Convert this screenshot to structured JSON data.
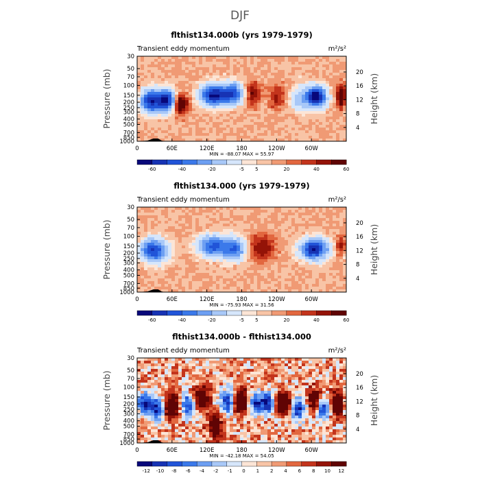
{
  "figure": {
    "title": "DJF"
  },
  "colors": {
    "abs_scale": [
      "#08087a",
      "#1733b4",
      "#2154d8",
      "#3b79ea",
      "#6d9ff2",
      "#a8c8f8",
      "#d6e6fb",
      "#fce5d6",
      "#f8c4a6",
      "#f09a74",
      "#e2673f",
      "#c3341c",
      "#941307",
      "#600404"
    ],
    "diff_scale": [
      "#08087a",
      "#1733b4",
      "#2154d8",
      "#3b79ea",
      "#6d9ff2",
      "#a8c8f8",
      "#d6e6fb",
      "#fce5d6",
      "#f8c4a6",
      "#f09a74",
      "#e2673f",
      "#c3341c",
      "#941307",
      "#600404"
    ]
  },
  "chart_data": [
    {
      "type": "heatmap",
      "title": "flthist134.000b (yrs 1979-1979)",
      "left_label": "Transient eddy momentum",
      "units": "m²/s²",
      "ylabel": "Pressure (mb)",
      "y2label": "Height (km)",
      "x_ticks": [
        "0",
        "60E",
        "120E",
        "180",
        "120W",
        "60W"
      ],
      "x_tick_lon": [
        0,
        60,
        120,
        180,
        240,
        300
      ],
      "y_ticks": [
        "30",
        "50",
        "70",
        "100",
        "150",
        "200",
        "250",
        "300",
        "400",
        "500",
        "700",
        "850",
        "1000"
      ],
      "y_tick_p": [
        30,
        50,
        70,
        100,
        150,
        200,
        250,
        300,
        400,
        500,
        700,
        850,
        1000
      ],
      "y2_ticks": [
        "20",
        "16",
        "12",
        "8",
        "4"
      ],
      "y2_tick_km": [
        20,
        16,
        12,
        8,
        4
      ],
      "stats": "MIN = -88.07   MAX =  55.97",
      "colorbar_labels": [
        "-60",
        "-40",
        "-20",
        "-5",
        "5",
        "20",
        "40",
        "60"
      ],
      "colorbar_levels": [
        -70,
        -60,
        -50,
        -40,
        -30,
        -20,
        -10,
        -5,
        0,
        5,
        10,
        20,
        30,
        40,
        50,
        60
      ],
      "features": [
        {
          "lon": 25,
          "p": 190,
          "amp": -70,
          "slon": 14,
          "sp": 0.32
        },
        {
          "lon": 52,
          "p": 185,
          "amp": -62,
          "slon": 10,
          "sp": 0.3
        },
        {
          "lon": 75,
          "p": 215,
          "amp": 48,
          "slon": 8,
          "sp": 0.28
        },
        {
          "lon": 132,
          "p": 150,
          "amp": -72,
          "slon": 16,
          "sp": 0.3
        },
        {
          "lon": 165,
          "p": 140,
          "amp": -55,
          "slon": 12,
          "sp": 0.3
        },
        {
          "lon": 200,
          "p": 140,
          "amp": 30,
          "slon": 8,
          "sp": 0.3
        },
        {
          "lon": 240,
          "p": 160,
          "amp": 22,
          "slon": 9,
          "sp": 0.32
        },
        {
          "lon": 280,
          "p": 170,
          "amp": -25,
          "slon": 10,
          "sp": 0.35
        },
        {
          "lon": 308,
          "p": 160,
          "amp": -80,
          "slon": 12,
          "sp": 0.3
        },
        {
          "lon": 352,
          "p": 160,
          "amp": 50,
          "slon": 6,
          "sp": 0.3
        }
      ]
    },
    {
      "type": "heatmap",
      "title": "flthist134.000 (yrs 1979-1979)",
      "left_label": "Transient eddy momentum",
      "units": "m²/s²",
      "ylabel": "Pressure (mb)",
      "y2label": "Height (km)",
      "x_ticks": [
        "0",
        "60E",
        "120E",
        "180",
        "120W",
        "60W"
      ],
      "x_tick_lon": [
        0,
        60,
        120,
        180,
        240,
        300
      ],
      "y_ticks": [
        "30",
        "50",
        "70",
        "100",
        "150",
        "200",
        "250",
        "300",
        "400",
        "500",
        "700",
        "850",
        "1000"
      ],
      "y_tick_p": [
        30,
        50,
        70,
        100,
        150,
        200,
        250,
        300,
        400,
        500,
        700,
        850,
        1000
      ],
      "y2_ticks": [
        "20",
        "16",
        "12",
        "8",
        "4"
      ],
      "y2_tick_km": [
        20,
        16,
        12,
        8,
        4
      ],
      "stats": "MIN = -75.93   MAX =  31.56",
      "colorbar_labels": [
        "-60",
        "-40",
        "-20",
        "-5",
        "5",
        "20",
        "40",
        "60"
      ],
      "colorbar_levels": [
        -70,
        -60,
        -50,
        -40,
        -30,
        -20,
        -10,
        -5,
        0,
        5,
        10,
        20,
        30,
        40,
        50,
        60
      ],
      "features": [
        {
          "lon": 28,
          "p": 180,
          "amp": -62,
          "slon": 16,
          "sp": 0.32
        },
        {
          "lon": 130,
          "p": 150,
          "amp": -55,
          "slon": 18,
          "sp": 0.3
        },
        {
          "lon": 168,
          "p": 170,
          "amp": -45,
          "slon": 14,
          "sp": 0.32
        },
        {
          "lon": 215,
          "p": 160,
          "amp": 30,
          "slon": 14,
          "sp": 0.32
        },
        {
          "lon": 305,
          "p": 170,
          "amp": -70,
          "slon": 16,
          "sp": 0.3
        },
        {
          "lon": 352,
          "p": 150,
          "amp": 25,
          "slon": 6,
          "sp": 0.3
        }
      ]
    },
    {
      "type": "heatmap",
      "title": "flthist134.000b - flthist134.000",
      "left_label": "Transient eddy momentum",
      "units": "m²/s²",
      "ylabel": "Pressure (mb)",
      "y2label": "Height (km)",
      "x_ticks": [
        "0",
        "60E",
        "120E",
        "180",
        "120W",
        "60W"
      ],
      "x_tick_lon": [
        0,
        60,
        120,
        180,
        240,
        300
      ],
      "y_ticks": [
        "30",
        "50",
        "70",
        "100",
        "150",
        "200",
        "250",
        "300",
        "400",
        "500",
        "700",
        "850",
        "1000"
      ],
      "y_tick_p": [
        30,
        50,
        70,
        100,
        150,
        200,
        250,
        300,
        400,
        500,
        700,
        850,
        1000
      ],
      "y2_ticks": [
        "20",
        "16",
        "12",
        "8",
        "4"
      ],
      "y2_tick_km": [
        20,
        16,
        12,
        8,
        4
      ],
      "stats": "MIN = -42.18   MAX =  54.05",
      "colorbar_labels": [
        "-12",
        "-10",
        "-8",
        "-6",
        "-4",
        "-2",
        "-1",
        "0",
        "1",
        "2",
        "4",
        "6",
        "8",
        "10",
        "12"
      ],
      "colorbar_levels": [
        -14,
        -12,
        -10,
        -8,
        -6,
        -4,
        -2,
        -1,
        0,
        1,
        2,
        4,
        6,
        8,
        10,
        12
      ],
      "features": [
        {
          "lon": 12,
          "p": 200,
          "amp": -14,
          "slon": 10,
          "sp": 0.3
        },
        {
          "lon": 35,
          "p": 250,
          "amp": -12,
          "slon": 9,
          "sp": 0.35
        },
        {
          "lon": 60,
          "p": 220,
          "amp": 16,
          "slon": 9,
          "sp": 0.35
        },
        {
          "lon": 88,
          "p": 210,
          "amp": -14,
          "slon": 9,
          "sp": 0.35
        },
        {
          "lon": 110,
          "p": 160,
          "amp": 12,
          "slon": 10,
          "sp": 0.35
        },
        {
          "lon": 135,
          "p": 500,
          "amp": 12,
          "slon": 8,
          "sp": 0.35
        },
        {
          "lon": 155,
          "p": 180,
          "amp": -13,
          "slon": 9,
          "sp": 0.35
        },
        {
          "lon": 178,
          "p": 180,
          "amp": 14,
          "slon": 9,
          "sp": 0.35
        },
        {
          "lon": 205,
          "p": 200,
          "amp": -12,
          "slon": 9,
          "sp": 0.3
        },
        {
          "lon": 225,
          "p": 190,
          "amp": -14,
          "slon": 8,
          "sp": 0.3
        },
        {
          "lon": 252,
          "p": 190,
          "amp": 15,
          "slon": 9,
          "sp": 0.3
        },
        {
          "lon": 278,
          "p": 250,
          "amp": -12,
          "slon": 9,
          "sp": 0.35
        },
        {
          "lon": 305,
          "p": 170,
          "amp": 12,
          "slon": 8,
          "sp": 0.3
        },
        {
          "lon": 320,
          "p": 250,
          "amp": -13,
          "slon": 8,
          "sp": 0.3
        },
        {
          "lon": 345,
          "p": 200,
          "amp": 14,
          "slon": 8,
          "sp": 0.35
        }
      ]
    }
  ]
}
